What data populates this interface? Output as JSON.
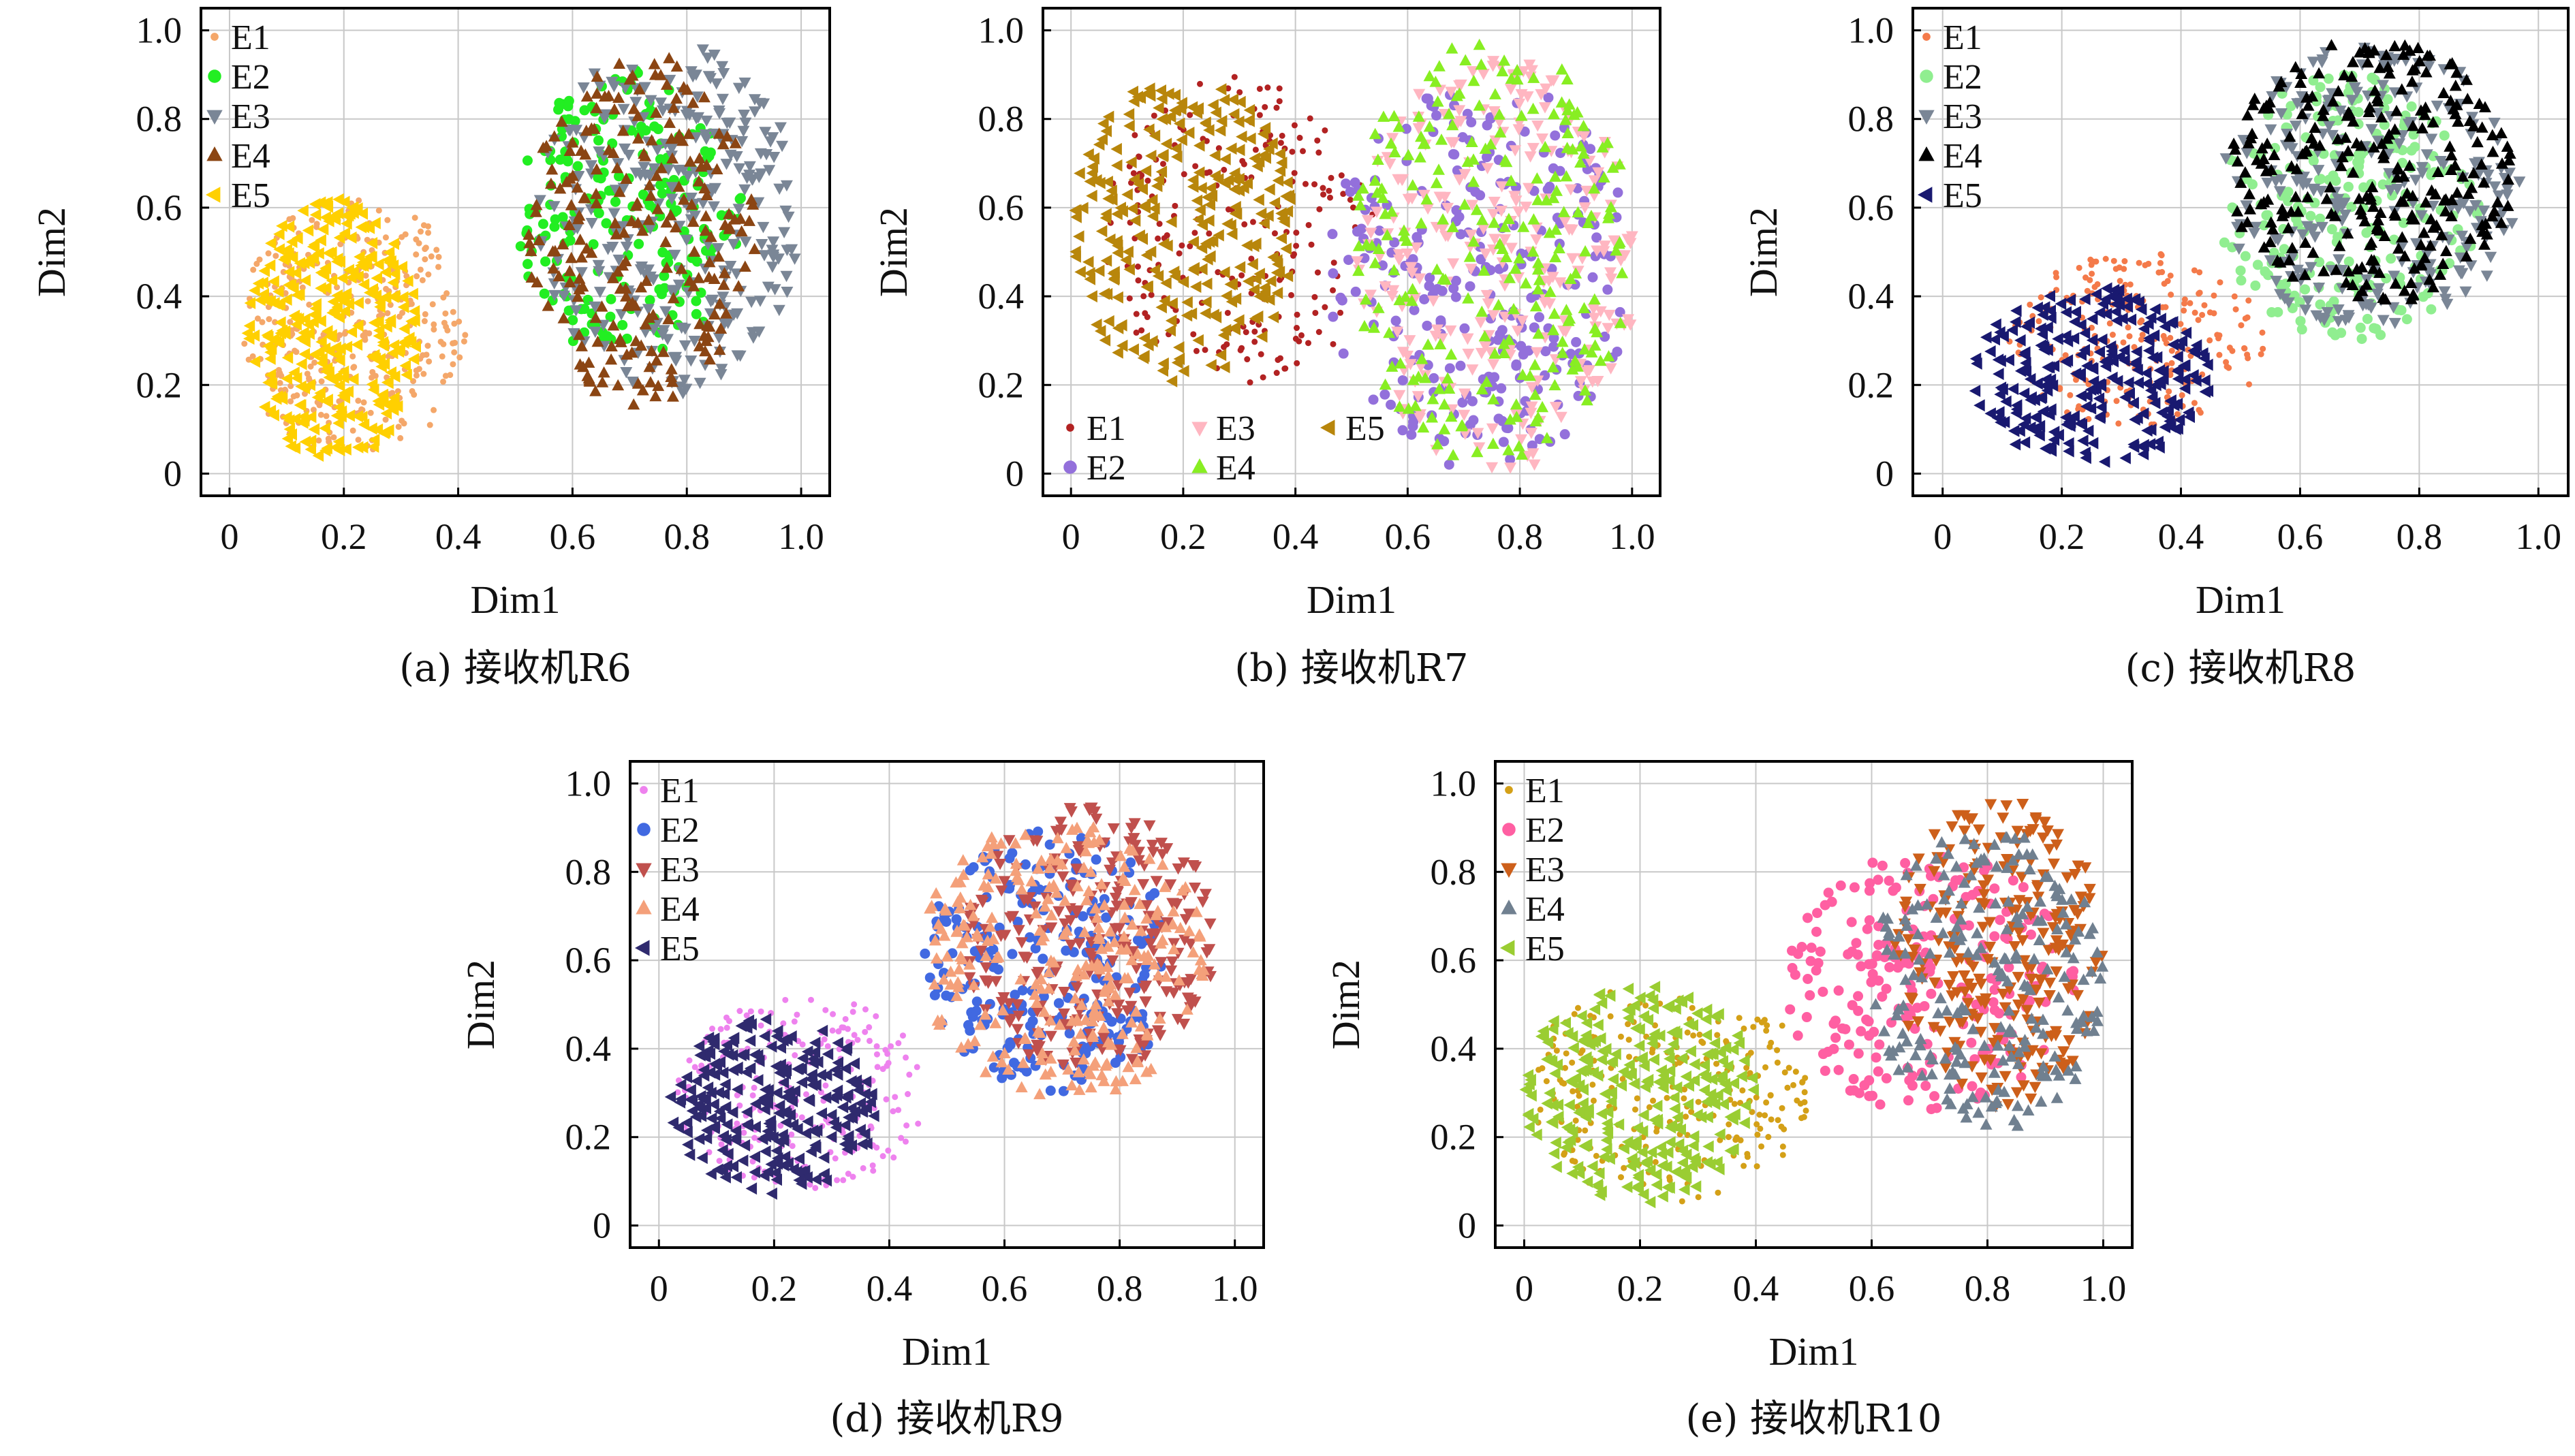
{
  "chart_data": [
    {
      "type": "scatter",
      "caption": "(a) 接收机R6",
      "xlabel": "Dim1",
      "ylabel": "Dim2",
      "xlim": [
        0,
        1.0
      ],
      "ylim": [
        0,
        1.0
      ],
      "xticks": [
        "0",
        "0.2",
        "0.4",
        "0.6",
        "0.8",
        "1.0"
      ],
      "yticks": [
        "0",
        "0.2",
        "0.4",
        "0.6",
        "0.8",
        "1.0"
      ],
      "grid": true,
      "legend_position": "top-left",
      "series": [
        {
          "name": "E1",
          "marker": "dot",
          "color": "#f4a76a",
          "cx": 0.22,
          "cy": 0.33,
          "rx": 0.2,
          "ry": 0.3,
          "n": 340,
          "seed": 11
        },
        {
          "name": "E2",
          "marker": "circle",
          "color": "#22ee22",
          "cx": 0.7,
          "cy": 0.58,
          "rx": 0.2,
          "ry": 0.33,
          "n": 210,
          "seed": 12
        },
        {
          "name": "E3",
          "marker": "tri-down",
          "color": "#7a8696",
          "cx": 0.77,
          "cy": 0.58,
          "rx": 0.23,
          "ry": 0.4,
          "n": 290,
          "seed": 13
        },
        {
          "name": "E4",
          "marker": "tri-up",
          "color": "#8b4513",
          "cx": 0.72,
          "cy": 0.55,
          "rx": 0.2,
          "ry": 0.4,
          "n": 230,
          "seed": 14
        },
        {
          "name": "E5",
          "marker": "tri-left",
          "color": "#ffd000",
          "cx": 0.18,
          "cy": 0.32,
          "rx": 0.15,
          "ry": 0.3,
          "n": 330,
          "seed": 15
        }
      ]
    },
    {
      "type": "scatter",
      "caption": "(b) 接收机R7",
      "xlabel": "Dim1",
      "ylabel": "Dim2",
      "xlim": [
        0,
        1.0
      ],
      "ylim": [
        0,
        1.0
      ],
      "xticks": [
        "0",
        "0.2",
        "0.4",
        "0.6",
        "0.8",
        "1.0"
      ],
      "yticks": [
        "0",
        "0.2",
        "0.4",
        "0.6",
        "0.8",
        "1.0"
      ],
      "grid": true,
      "legend_position": "bottom-left",
      "series": [
        {
          "name": "E1",
          "marker": "dot",
          "color": "#b22222",
          "cx": 0.3,
          "cy": 0.55,
          "rx": 0.25,
          "ry": 0.35,
          "n": 210,
          "seed": 21
        },
        {
          "name": "E2",
          "marker": "circle",
          "color": "#9370db",
          "cx": 0.73,
          "cy": 0.45,
          "rx": 0.27,
          "ry": 0.45,
          "n": 260,
          "seed": 22
        },
        {
          "name": "E3",
          "marker": "tri-down",
          "color": "#ffb6c1",
          "cx": 0.76,
          "cy": 0.47,
          "rx": 0.25,
          "ry": 0.47,
          "n": 270,
          "seed": 23
        },
        {
          "name": "E4",
          "marker": "tri-up",
          "color": "#88ee22",
          "cx": 0.75,
          "cy": 0.5,
          "rx": 0.25,
          "ry": 0.48,
          "n": 240,
          "seed": 24
        },
        {
          "name": "E5",
          "marker": "tri-left",
          "color": "#b8860b",
          "cx": 0.2,
          "cy": 0.55,
          "rx": 0.2,
          "ry": 0.35,
          "n": 290,
          "seed": 25
        }
      ]
    },
    {
      "type": "scatter",
      "caption": "(c) 接收机R8",
      "xlabel": "Dim1",
      "ylabel": "Dim2",
      "xlim": [
        0,
        1.0
      ],
      "ylim": [
        0,
        1.0
      ],
      "xticks": [
        "0",
        "0.2",
        "0.4",
        "0.6",
        "0.8",
        "1.0"
      ],
      "yticks": [
        "0",
        "0.2",
        "0.4",
        "0.6",
        "0.8",
        "1.0"
      ],
      "grid": true,
      "legend_position": "top-left",
      "series": [
        {
          "name": "E1",
          "marker": "dot",
          "color": "#f47a4a",
          "cx": 0.33,
          "cy": 0.3,
          "rx": 0.22,
          "ry": 0.2,
          "n": 220,
          "seed": 31
        },
        {
          "name": "E2",
          "marker": "circle",
          "color": "#90ee90",
          "cx": 0.68,
          "cy": 0.6,
          "rx": 0.22,
          "ry": 0.3,
          "n": 240,
          "seed": 32
        },
        {
          "name": "E3",
          "marker": "tri-down",
          "color": "#7a8696",
          "cx": 0.72,
          "cy": 0.65,
          "rx": 0.25,
          "ry": 0.32,
          "n": 250,
          "seed": 33
        },
        {
          "name": "E4",
          "marker": "tri-up",
          "color": "#000000",
          "cx": 0.72,
          "cy": 0.68,
          "rx": 0.24,
          "ry": 0.3,
          "n": 270,
          "seed": 34
        },
        {
          "name": "E5",
          "marker": "tri-left",
          "color": "#191970",
          "cx": 0.25,
          "cy": 0.22,
          "rx": 0.2,
          "ry": 0.2,
          "n": 270,
          "seed": 35
        }
      ]
    },
    {
      "type": "scatter",
      "caption": "(d) 接收机R9",
      "xlabel": "Dim1",
      "ylabel": "Dim2",
      "xlim": [
        0,
        1.0
      ],
      "ylim": [
        0,
        1.0
      ],
      "xticks": [
        "0",
        "0.2",
        "0.4",
        "0.6",
        "0.8",
        "1.0"
      ],
      "yticks": [
        "0",
        "0.2",
        "0.4",
        "0.6",
        "0.8",
        "1.0"
      ],
      "grid": true,
      "legend_position": "top-left",
      "series": [
        {
          "name": "E1",
          "marker": "dot",
          "color": "#ee82ee",
          "cx": 0.25,
          "cy": 0.3,
          "rx": 0.22,
          "ry": 0.22,
          "n": 220,
          "seed": 41
        },
        {
          "name": "E2",
          "marker": "circle",
          "color": "#4169e1",
          "cx": 0.68,
          "cy": 0.6,
          "rx": 0.22,
          "ry": 0.3,
          "n": 230,
          "seed": 42
        },
        {
          "name": "E3",
          "marker": "tri-down",
          "color": "#c0504d",
          "cx": 0.75,
          "cy": 0.65,
          "rx": 0.22,
          "ry": 0.3,
          "n": 250,
          "seed": 43
        },
        {
          "name": "E4",
          "marker": "tri-up",
          "color": "#f4a07a",
          "cx": 0.7,
          "cy": 0.6,
          "rx": 0.25,
          "ry": 0.32,
          "n": 270,
          "seed": 44
        },
        {
          "name": "E5",
          "marker": "tri-left",
          "color": "#2f2a6e",
          "cx": 0.2,
          "cy": 0.27,
          "rx": 0.18,
          "ry": 0.2,
          "n": 260,
          "seed": 45
        }
      ]
    },
    {
      "type": "scatter",
      "caption": "(e) 接收机R10",
      "xlabel": "Dim1",
      "ylabel": "Dim2",
      "xlim": [
        0,
        1.0
      ],
      "ylim": [
        0,
        1.0
      ],
      "xticks": [
        "0",
        "0.2",
        "0.4",
        "0.6",
        "0.8",
        "1.0"
      ],
      "yticks": [
        "0",
        "0.2",
        "0.4",
        "0.6",
        "0.8",
        "1.0"
      ],
      "grid": true,
      "legend_position": "top-left",
      "series": [
        {
          "name": "E1",
          "marker": "dot",
          "color": "#d4a017",
          "cx": 0.25,
          "cy": 0.3,
          "rx": 0.25,
          "ry": 0.25,
          "n": 240,
          "seed": 51
        },
        {
          "name": "E2",
          "marker": "circle",
          "color": "#ff5fa2",
          "cx": 0.7,
          "cy": 0.55,
          "rx": 0.25,
          "ry": 0.3,
          "n": 230,
          "seed": 52
        },
        {
          "name": "E3",
          "marker": "tri-down",
          "color": "#cd5f1a",
          "cx": 0.82,
          "cy": 0.62,
          "rx": 0.18,
          "ry": 0.35,
          "n": 240,
          "seed": 53
        },
        {
          "name": "E4",
          "marker": "tri-up",
          "color": "#708090",
          "cx": 0.8,
          "cy": 0.55,
          "rx": 0.2,
          "ry": 0.35,
          "n": 210,
          "seed": 54
        },
        {
          "name": "E5",
          "marker": "tri-left",
          "color": "#9acd32",
          "cx": 0.2,
          "cy": 0.3,
          "rx": 0.2,
          "ry": 0.25,
          "n": 290,
          "seed": 55
        }
      ]
    }
  ]
}
